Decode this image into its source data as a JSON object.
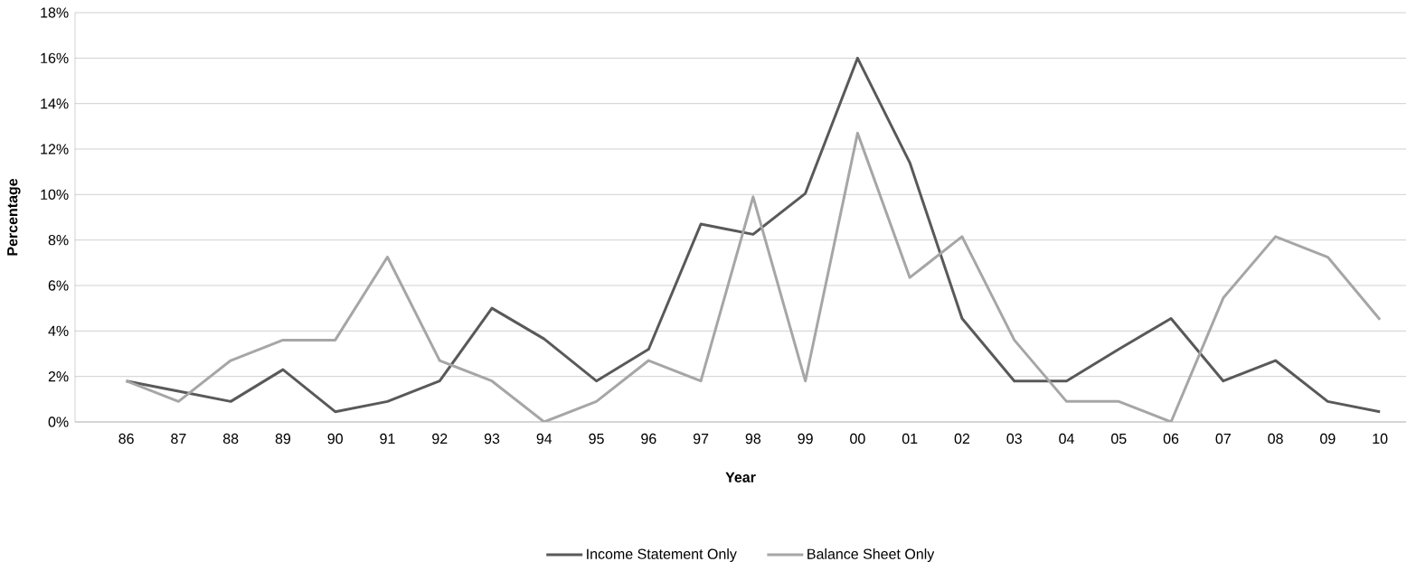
{
  "chart_data": {
    "type": "line",
    "xlabel": "Year",
    "ylabel": "Percentage",
    "categories": [
      "86",
      "87",
      "88",
      "89",
      "90",
      "91",
      "92",
      "93",
      "94",
      "95",
      "96",
      "97",
      "98",
      "99",
      "00",
      "01",
      "02",
      "03",
      "04",
      "05",
      "06",
      "07",
      "08",
      "09",
      "10"
    ],
    "series": [
      {
        "name": "Income Statement Only",
        "color": "#595959",
        "values": [
          1.8,
          1.35,
          0.9,
          2.3,
          0.45,
          0.9,
          1.8,
          5.0,
          3.65,
          1.8,
          3.2,
          8.7,
          8.25,
          10.05,
          16.0,
          11.4,
          4.55,
          1.8,
          1.8,
          3.2,
          4.55,
          1.8,
          2.7,
          0.9,
          0.45
        ]
      },
      {
        "name": "Balance Sheet Only",
        "color": "#a6a6a6",
        "values": [
          1.8,
          0.9,
          2.7,
          3.6,
          3.6,
          7.25,
          2.7,
          1.8,
          0.0,
          0.9,
          2.7,
          1.8,
          9.9,
          1.8,
          12.7,
          6.35,
          8.15,
          3.6,
          0.9,
          0.9,
          0.0,
          5.45,
          8.15,
          7.25,
          4.5
        ]
      }
    ],
    "ylim": [
      0,
      18
    ],
    "yticks": [
      {
        "value": 0,
        "label": "0%"
      },
      {
        "value": 2,
        "label": "2%"
      },
      {
        "value": 4,
        "label": "4%"
      },
      {
        "value": 6,
        "label": "6%"
      },
      {
        "value": 8,
        "label": "8%"
      },
      {
        "value": 10,
        "label": "10%"
      },
      {
        "value": 12,
        "label": "12%"
      },
      {
        "value": 14,
        "label": "14%"
      },
      {
        "value": 16,
        "label": "16%"
      },
      {
        "value": 18,
        "label": "18%"
      }
    ],
    "grid": "y",
    "legend": "bottom",
    "marker": "none",
    "line_style": "solid"
  }
}
